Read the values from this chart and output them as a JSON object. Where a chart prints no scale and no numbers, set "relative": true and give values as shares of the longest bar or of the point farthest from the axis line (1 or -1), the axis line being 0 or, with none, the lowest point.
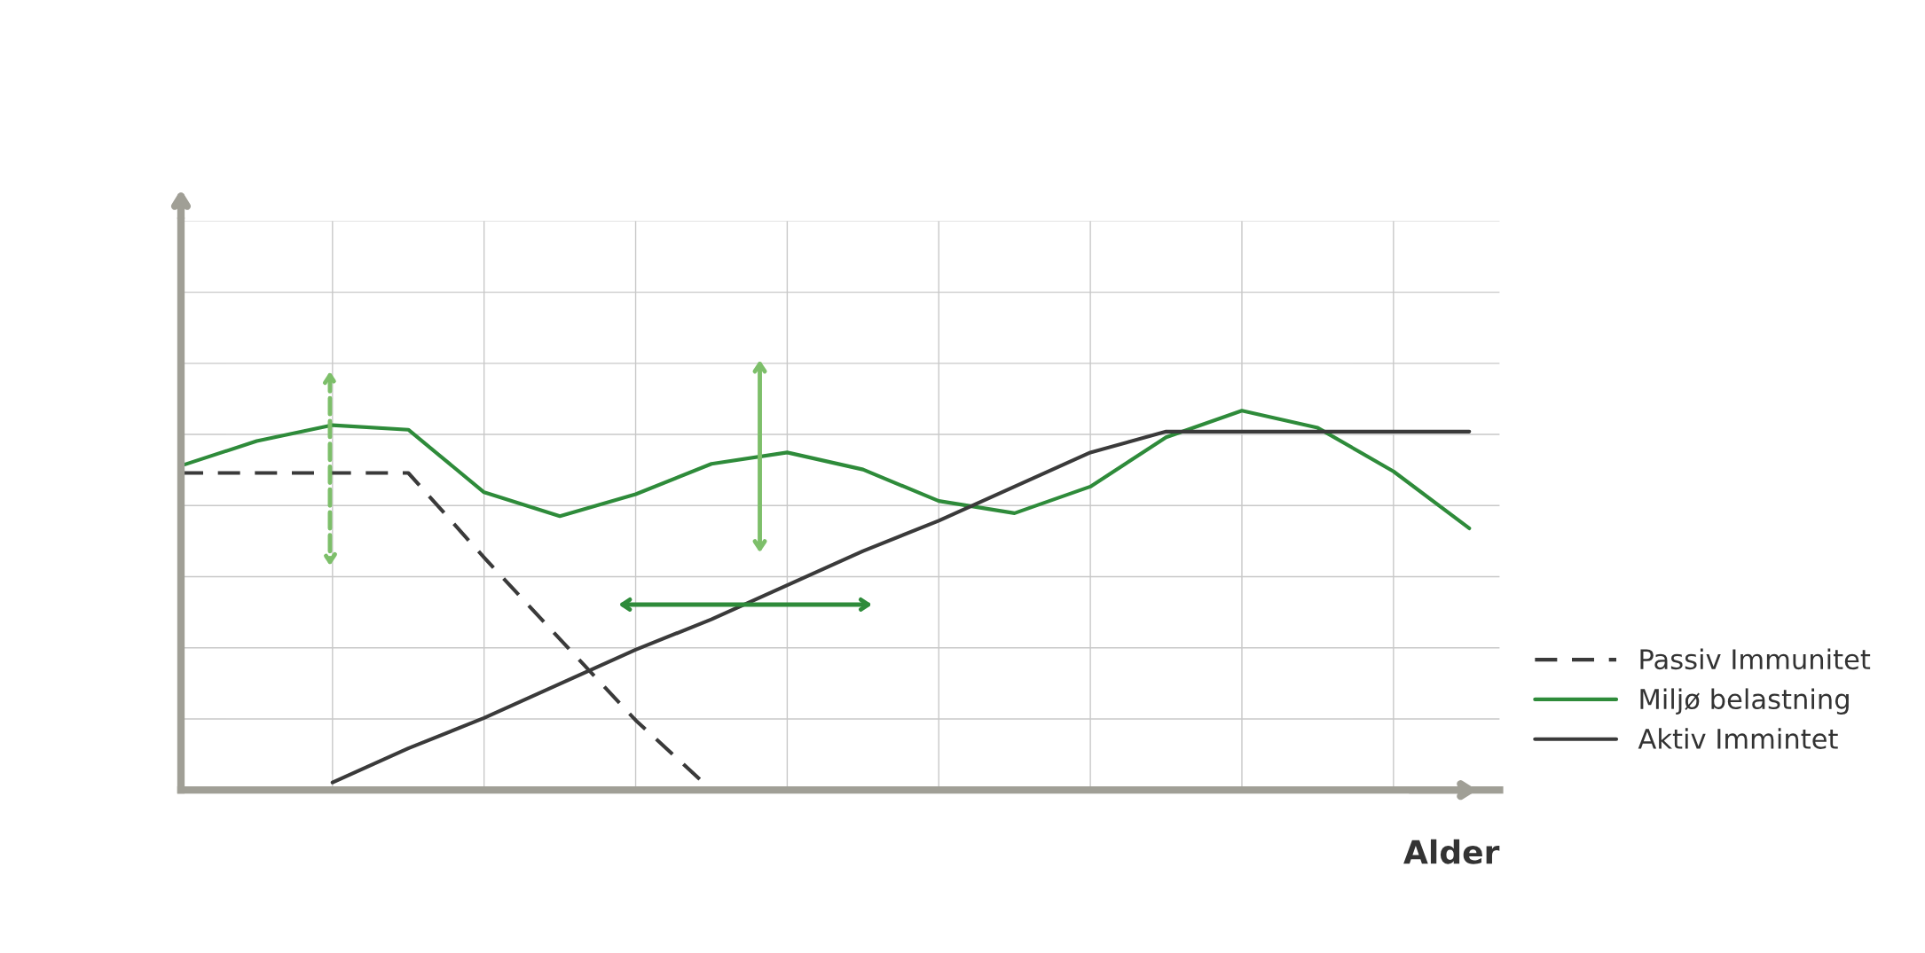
{
  "chart_data": {
    "type": "line",
    "relative": true,
    "xlabel": "Alder",
    "categories": [
      null,
      null,
      null,
      null,
      null,
      null,
      null,
      null,
      null,
      null,
      null,
      null,
      null,
      null,
      null,
      null,
      null,
      null
    ],
    "tick_labels": false,
    "grid": true,
    "legend": "lower right",
    "marker": "none",
    "series": [
      {
        "name": "Passiv Immunitet",
        "color": "#3a3a3a",
        "line_style": "dashed",
        "values": [
          0.836,
          0.836,
          0.836,
          0.836,
          0.613,
          0.398,
          0.184,
          0,
          null,
          null,
          null,
          null,
          null,
          null,
          null,
          null,
          null,
          null
        ]
      },
      {
        "name": "Miljø belastning",
        "color": "#2e8b3a",
        "line_style": "solid",
        "values": [
          0.855,
          0.92,
          0.962,
          0.95,
          0.785,
          0.722,
          0.78,
          0.86,
          0.89,
          0.845,
          0.762,
          0.73,
          0.8,
          0.93,
          1,
          0.955,
          0.84,
          0.69
        ]
      },
      {
        "name": "Aktiv Immintet",
        "color": "#3a3a3a",
        "line_style": "solid",
        "values": [
          null,
          null,
          0.02,
          0.11,
          0.19,
          0.28,
          0.37,
          0.45,
          0.54,
          0.63,
          0.71,
          0.8,
          0.89,
          0.945,
          0.945,
          0.945,
          0.945,
          0.945
        ]
      }
    ]
  }
}
